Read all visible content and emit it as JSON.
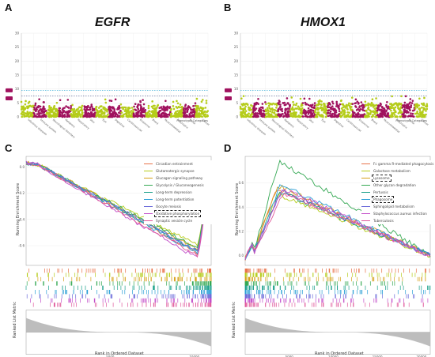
{
  "panels": {
    "A": {
      "label": "A",
      "gene": "EGFR"
    },
    "B": {
      "label": "B",
      "gene": "HMOX1"
    },
    "C": {
      "label": "C"
    },
    "D": {
      "label": "D"
    }
  },
  "colors": {
    "magenta": "#a0125e",
    "olive": "#b5cc1a",
    "threshold_blue": "#2aa7d4",
    "threshold_navy": "#1f2a6b"
  },
  "gsea_axes": {
    "y_label": "Running Enrichment Score",
    "rank_label": "Ranked List Metric",
    "x_label": "Rank in Ordered Dataset"
  },
  "chart_data": [
    {
      "type": "scatter",
      "panel": "A",
      "title": "EGFR",
      "xlabel": "Phenotype Categories",
      "ylim": [
        0,
        30
      ],
      "y_ticks": [
        0,
        5,
        10,
        15,
        20,
        25,
        30
      ],
      "categories": [
        "Infectious diseases",
        "Immune system",
        "Neurological disorders",
        "Metabolic",
        "Respiratory",
        "Skin",
        "Eye",
        "Digestive",
        "Cardiovascular",
        "Endocrine",
        "Blood",
        "Musculoskeletal",
        "Psychiatric",
        "Renal",
        "Cancer"
      ],
      "thresholds": [
        7.5,
        9.5
      ],
      "dominant_y_range": [
        0,
        4
      ]
    },
    {
      "type": "scatter",
      "panel": "B",
      "title": "HMOX1",
      "xlabel": "Phenotype Categories",
      "ylim": [
        0,
        30
      ],
      "y_ticks": [
        0,
        5,
        10,
        15,
        20,
        25,
        30
      ],
      "categories": [
        "Infectious diseases",
        "Immune system",
        "Neurological disorders",
        "Metabolic",
        "Respiratory",
        "Skin",
        "Eye",
        "Digestive",
        "Cardiovascular",
        "Endocrine",
        "Blood",
        "Musculoskeletal",
        "Psychiatric",
        "Renal",
        "Cancer"
      ],
      "thresholds": [
        7.5,
        9.5
      ],
      "dominant_y_range": [
        0,
        5
      ]
    },
    {
      "type": "line",
      "panel": "C",
      "xlabel": "Rank in Ordered Dataset",
      "ylabel": "Running Enrichment Score",
      "x_ticks": [
        5000,
        10000
      ],
      "xlim": [
        0,
        11000
      ],
      "y_ticks": [
        0.0,
        -0.2,
        -0.4,
        -0.6
      ],
      "ylim": [
        -0.75,
        0.08
      ],
      "series": [
        {
          "name": "Circadian entrainment",
          "color": "#e8734a",
          "min": -0.66
        },
        {
          "name": "Glutamatergic synapse",
          "color": "#b5cc1a",
          "min": -0.6
        },
        {
          "name": "Glucagon signaling pathway",
          "color": "#d6a01a",
          "min": -0.63
        },
        {
          "name": "Glycolysis / Gluconeogenesis",
          "color": "#34a853",
          "min": -0.62
        },
        {
          "name": "Long-term depression",
          "color": "#1aa08a",
          "min": -0.65
        },
        {
          "name": "Long-term potentiation",
          "color": "#2b9fd6",
          "min": -0.66
        },
        {
          "name": "Oocyte meiosis",
          "color": "#6a6ad9",
          "min": -0.64
        },
        {
          "name": "Oxidative phosphorylation",
          "color": "#c34fc9",
          "min": -0.7,
          "boxed": true
        },
        {
          "name": "Synaptic vesicle cycle",
          "color": "#e05a9b",
          "min": -0.68
        }
      ]
    },
    {
      "type": "line",
      "panel": "D",
      "xlabel": "Rank in Ordered Dataset",
      "ylabel": "Running Enrichment Score",
      "x_ticks": [
        5000,
        10000,
        15000,
        20000
      ],
      "xlim": [
        0,
        21000
      ],
      "y_ticks": [
        0.0,
        0.2,
        0.4,
        0.6
      ],
      "ylim": [
        -0.08,
        0.82
      ],
      "series": [
        {
          "name": "Fc gamma R-mediated phagocytosis",
          "color": "#e8734a",
          "peak": 0.55
        },
        {
          "name": "Galactose metabolism",
          "color": "#b5cc1a",
          "peak": 0.5
        },
        {
          "name": "Lysosome",
          "color": "#d6a01a",
          "peak": 0.57,
          "boxed": true
        },
        {
          "name": "Other glycan degradation",
          "color": "#34a853",
          "peak": 0.77
        },
        {
          "name": "Pertussis",
          "color": "#1aa08a",
          "peak": 0.52
        },
        {
          "name": "Phagosome",
          "color": "#2b9fd6",
          "peak": 0.58,
          "boxed": true
        },
        {
          "name": "Sphingolipid metabolism",
          "color": "#6a6ad9",
          "peak": 0.53
        },
        {
          "name": "Staphylococcus aureus infection",
          "color": "#c34fc9",
          "peak": 0.55
        },
        {
          "name": "Tuberculosis",
          "color": "#e05a9b",
          "peak": 0.51
        }
      ]
    }
  ]
}
